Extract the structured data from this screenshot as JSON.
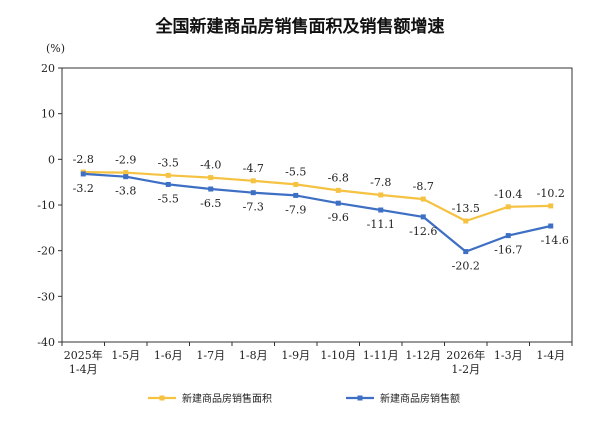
{
  "chart_data": {
    "type": "line",
    "title": "全国新建商品房销售面积及销售额增速",
    "ylabel": "(%)",
    "ylim": [
      -40,
      20
    ],
    "yticks": [
      20,
      10,
      0,
      -10,
      -20,
      -30,
      -40
    ],
    "categories": [
      [
        "2025年",
        "1-4月"
      ],
      [
        "1-5月"
      ],
      [
        "1-6月"
      ],
      [
        "1-7月"
      ],
      [
        "1-8月"
      ],
      [
        "1-9月"
      ],
      [
        "1-10月"
      ],
      [
        "1-11月"
      ],
      [
        "1-12月"
      ],
      [
        "2026年",
        "1-2月"
      ],
      [
        "1-3月"
      ],
      [
        "1-4月"
      ]
    ],
    "series": [
      {
        "name": "新建商品房销售面积",
        "color": "#f5c242",
        "values": [
          -2.8,
          -2.9,
          -3.5,
          -4.0,
          -4.7,
          -5.5,
          -6.8,
          -7.8,
          -8.7,
          -13.5,
          -10.4,
          -10.2
        ],
        "labels": [
          "-2.8",
          "-2.9",
          "-3.5",
          "-4.0",
          "-4.7",
          "-5.5",
          "-6.8",
          "-7.8",
          "-8.7",
          "-13.5",
          "-10.4",
          "-10.2"
        ]
      },
      {
        "name": "新建商品房销售额",
        "color": "#3d6fc4",
        "values": [
          -3.2,
          -3.8,
          -5.5,
          -6.5,
          -7.3,
          -7.9,
          -9.6,
          -11.1,
          -12.6,
          -20.2,
          -16.7,
          -14.6
        ],
        "labels": [
          "-3.2",
          "-3.8",
          "-5.5",
          "-6.5",
          "-7.3",
          "-7.9",
          "-9.6",
          "-11.1",
          "-12.6",
          "-20.2",
          "-16.7",
          "-14.6"
        ]
      }
    ],
    "legend": "bottom",
    "grid": false
  }
}
